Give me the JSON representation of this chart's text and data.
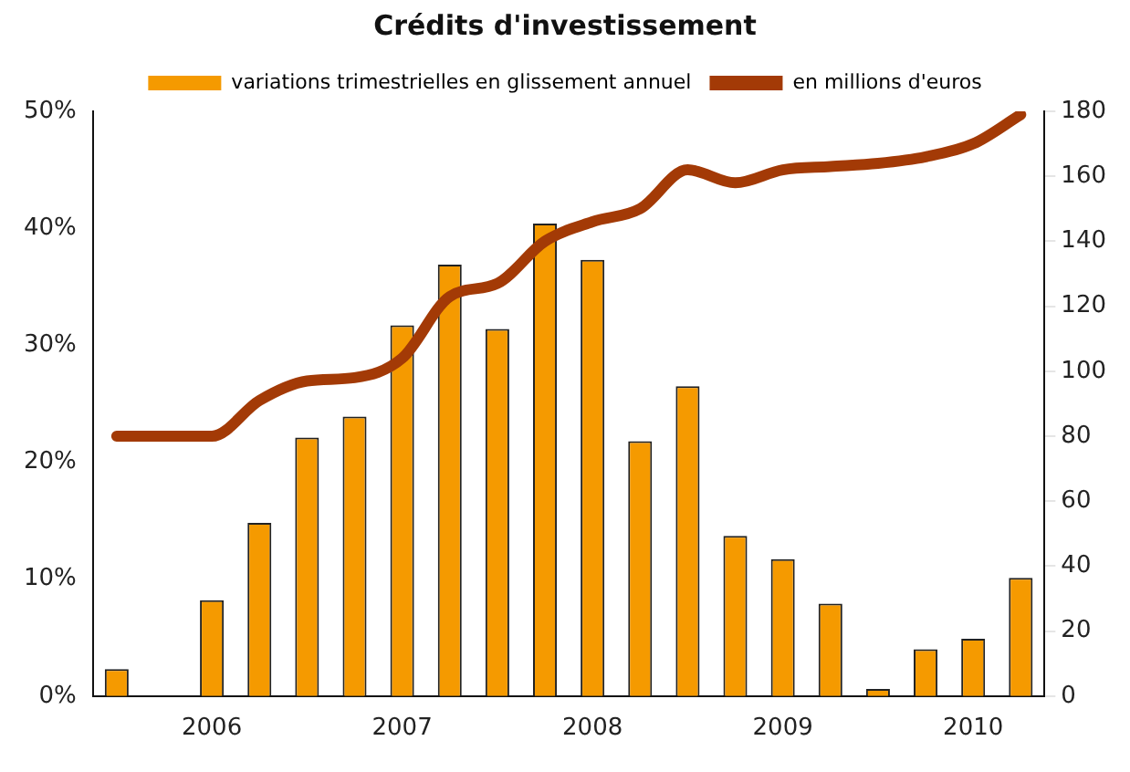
{
  "chart_data": {
    "type": "bar",
    "title": "Crédits d'investissement",
    "categories": [
      null,
      null,
      "2006",
      null,
      null,
      null,
      "2007",
      null,
      null,
      null,
      "2008",
      null,
      null,
      null,
      "2009",
      null,
      null,
      null,
      "2010",
      null
    ],
    "series": [
      {
        "name": "variations trimestrielles en glissement annuel",
        "color": "#f59a00",
        "values": [
          2.3,
          0,
          8.2,
          14.8,
          22.1,
          23.9,
          31.7,
          36.9,
          31.4,
          40.4,
          37.3,
          21.8,
          26.5,
          13.7,
          11.7,
          7.9,
          0.6,
          4.0,
          4.9,
          10.1
        ]
      },
      {
        "name": "en millions d'euros",
        "type": "line",
        "axis": "y2",
        "color": "#a33a06",
        "values": [
          80,
          80,
          80,
          91,
          97,
          98,
          104,
          123,
          127,
          140,
          146,
          150,
          162,
          158,
          162,
          163,
          164,
          166,
          170,
          179
        ]
      }
    ],
    "ylim": [
      0,
      50
    ],
    "yticks": [
      {
        "value": 0,
        "label": "0%"
      },
      {
        "value": 10,
        "label": "10%"
      },
      {
        "value": 20,
        "label": "20%"
      },
      {
        "value": 30,
        "label": "30%"
      },
      {
        "value": 40,
        "label": "40%"
      },
      {
        "value": 50,
        "label": "50%"
      }
    ],
    "y2lim": [
      0,
      180
    ],
    "y2ticks": [
      0,
      20,
      40,
      60,
      80,
      100,
      120,
      140,
      160,
      180
    ],
    "grid": false,
    "legend": "top",
    "marker": "none",
    "line_style": "solid"
  }
}
